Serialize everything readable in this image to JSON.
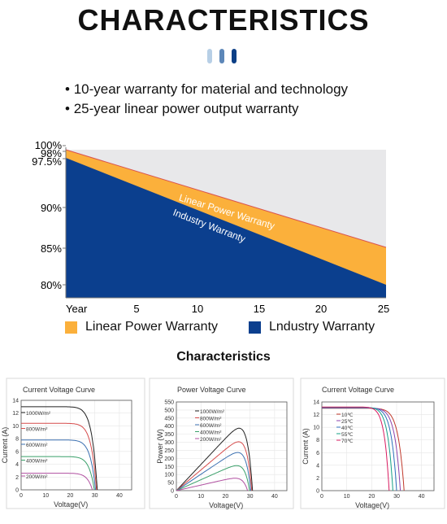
{
  "header": {
    "title": "CHARACTERISTICS",
    "dot_colors": [
      "#b7cfe6",
      "#5d87b8",
      "#0c3f86"
    ]
  },
  "bullets": [
    "10-year warranty for material and technology",
    "25-year linear power output warranty"
  ],
  "warranty_chart": {
    "y_tick_labels": [
      "100%",
      "98%",
      "97.5%",
      "90%",
      "85%",
      "80%"
    ],
    "x_tick_labels": [
      "Year",
      "5",
      "10",
      "15",
      "20",
      "25"
    ],
    "band_labels": [
      "Linear Power Warranty",
      "Industry Warranty"
    ],
    "legend": [
      {
        "label": "Linear Power Warranty",
        "color": "#fbb03b"
      },
      {
        "label": "Lndustry Warranty",
        "color": "#0b3f8e"
      }
    ],
    "colors": {
      "linear": "#fbb03b",
      "industry": "#0b3f8e",
      "background": "#e8e8ea"
    }
  },
  "characteristics_label": "Characteristics",
  "chart_data": [
    {
      "type": "area",
      "x": [
        0,
        25
      ],
      "series": [
        {
          "name": "Linear Power Warranty",
          "values": [
            98,
            85
          ]
        },
        {
          "name": "Industry Warranty",
          "values": [
            97.5,
            80
          ]
        }
      ],
      "xlabel": "",
      "ylabel": "",
      "ylim": [
        80,
        100
      ],
      "xlim": [
        0,
        25
      ]
    },
    {
      "type": "line",
      "title": "Current Voltage Curve",
      "xlabel": "Voltage(V)",
      "ylabel": "Current (A)",
      "xlim": [
        0,
        45
      ],
      "ylim": [
        0,
        14
      ],
      "x_ticks": [
        0,
        10,
        20,
        30,
        40
      ],
      "y_ticks": [
        0,
        2,
        4,
        6,
        8,
        10,
        12,
        14
      ],
      "series": [
        {
          "label": "1000W/m²",
          "isc": 13,
          "voc": 31,
          "color": "#222222"
        },
        {
          "label": "800W/m²",
          "isc": 10.4,
          "voc": 30.7,
          "color": "#d64b4b"
        },
        {
          "label": "600W/m²",
          "isc": 7.8,
          "voc": 30.3,
          "color": "#3a6fb0"
        },
        {
          "label": "400W/m²",
          "isc": 5.2,
          "voc": 29.8,
          "color": "#3aa06a"
        },
        {
          "label": "200W/m²",
          "isc": 2.6,
          "voc": 29,
          "color": "#b04fa0"
        }
      ]
    },
    {
      "type": "line",
      "title": "Power Voltage Curve",
      "xlabel": "Voltage(V)",
      "ylabel": "Power (W)",
      "xlim": [
        0,
        45
      ],
      "ylim": [
        0,
        550
      ],
      "x_ticks": [
        0,
        10,
        20,
        30,
        40
      ],
      "y_ticks": [
        0,
        50,
        100,
        150,
        200,
        250,
        300,
        350,
        400,
        450,
        500,
        550
      ],
      "series": [
        {
          "label": "1000W/m²",
          "pmax": 400,
          "vmp": 26.5,
          "voc": 31,
          "color": "#222222"
        },
        {
          "label": "800W/m²",
          "pmax": 320,
          "vmp": 26.8,
          "voc": 30.7,
          "color": "#d64b4b"
        },
        {
          "label": "600W/m²",
          "pmax": 255,
          "vmp": 27,
          "voc": 30.3,
          "color": "#3a6fb0"
        },
        {
          "label": "400W/m²",
          "pmax": 170,
          "vmp": 27,
          "voc": 29.8,
          "color": "#3aa06a"
        },
        {
          "label": "200W/m²",
          "pmax": 85,
          "vmp": 26.5,
          "voc": 29,
          "color": "#b04fa0"
        }
      ]
    },
    {
      "type": "line",
      "title": "Current Voltage Curve",
      "xlabel": "Voltage(V)",
      "ylabel": "Current (A)",
      "xlim": [
        0,
        45
      ],
      "ylim": [
        0,
        14
      ],
      "x_ticks": [
        0,
        10,
        20,
        30,
        40
      ],
      "y_ticks": [
        0,
        2,
        4,
        6,
        8,
        10,
        12,
        14
      ],
      "series": [
        {
          "label": "10℃",
          "isc": 13,
          "voc": 33,
          "color": "#c0392b"
        },
        {
          "label": "25℃",
          "isc": 13.05,
          "voc": 31.5,
          "color": "#8e44ad"
        },
        {
          "label": "40℃",
          "isc": 13.1,
          "voc": 30,
          "color": "#2c6fbb"
        },
        {
          "label": "55℃",
          "isc": 13.15,
          "voc": 28.5,
          "color": "#16a085"
        },
        {
          "label": "70℃",
          "isc": 13.2,
          "voc": 27,
          "color": "#d81b60"
        }
      ]
    }
  ]
}
